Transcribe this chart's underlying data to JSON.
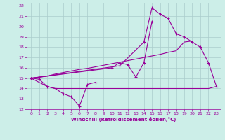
{
  "background_color": "#cceee8",
  "grid_color": "#aacccc",
  "line_color": "#990099",
  "xlim": [
    -0.5,
    23.5
  ],
  "ylim": [
    12,
    22.3
  ],
  "xticks": [
    0,
    1,
    2,
    3,
    4,
    5,
    6,
    7,
    8,
    9,
    10,
    11,
    12,
    13,
    14,
    15,
    16,
    17,
    18,
    19,
    20,
    21,
    22,
    23
  ],
  "yticks": [
    12,
    13,
    14,
    15,
    16,
    17,
    18,
    19,
    20,
    21,
    22
  ],
  "xlabel": "Windchill (Refroidissement éolien,°C)",
  "series": [
    {
      "x": [
        0,
        1,
        2,
        3,
        4,
        5,
        6,
        7,
        8
      ],
      "y": [
        15.0,
        14.9,
        14.2,
        14.0,
        13.5,
        13.2,
        12.3,
        14.4,
        14.6
      ],
      "marker": true
    },
    {
      "x": [
        0,
        2,
        3,
        4,
        5,
        6,
        7,
        8,
        9,
        10,
        11,
        12,
        13,
        14,
        15,
        16,
        17,
        18,
        19,
        20,
        21,
        22,
        23
      ],
      "y": [
        15.0,
        14.2,
        14.0,
        14.0,
        14.0,
        14.0,
        14.0,
        14.0,
        14.0,
        14.0,
        14.0,
        14.0,
        14.0,
        14.0,
        14.0,
        14.0,
        14.0,
        14.0,
        14.0,
        14.0,
        14.0,
        14.0,
        14.2
      ],
      "marker": false
    },
    {
      "x": [
        0,
        10,
        11,
        12,
        13,
        14,
        15
      ],
      "y": [
        15.0,
        16.0,
        16.5,
        16.3,
        15.1,
        16.5,
        20.5
      ],
      "marker": true
    },
    {
      "x": [
        0,
        11,
        14,
        15,
        16,
        17,
        18,
        19,
        20,
        21,
        22,
        23
      ],
      "y": [
        15.0,
        16.2,
        18.5,
        21.8,
        21.2,
        20.8,
        19.3,
        19.0,
        18.5,
        18.0,
        16.5,
        14.2
      ],
      "marker": true
    },
    {
      "x": [
        0,
        1,
        2,
        3,
        4,
        5,
        6,
        7,
        8,
        9,
        10,
        11,
        12,
        13,
        14,
        15,
        16,
        17,
        18,
        19,
        20
      ],
      "y": [
        15.0,
        15.1,
        15.2,
        15.4,
        15.55,
        15.7,
        15.85,
        15.95,
        16.1,
        16.25,
        16.4,
        16.55,
        16.7,
        16.85,
        17.0,
        17.15,
        17.3,
        17.5,
        17.65,
        18.5,
        18.6
      ],
      "marker": false
    }
  ]
}
